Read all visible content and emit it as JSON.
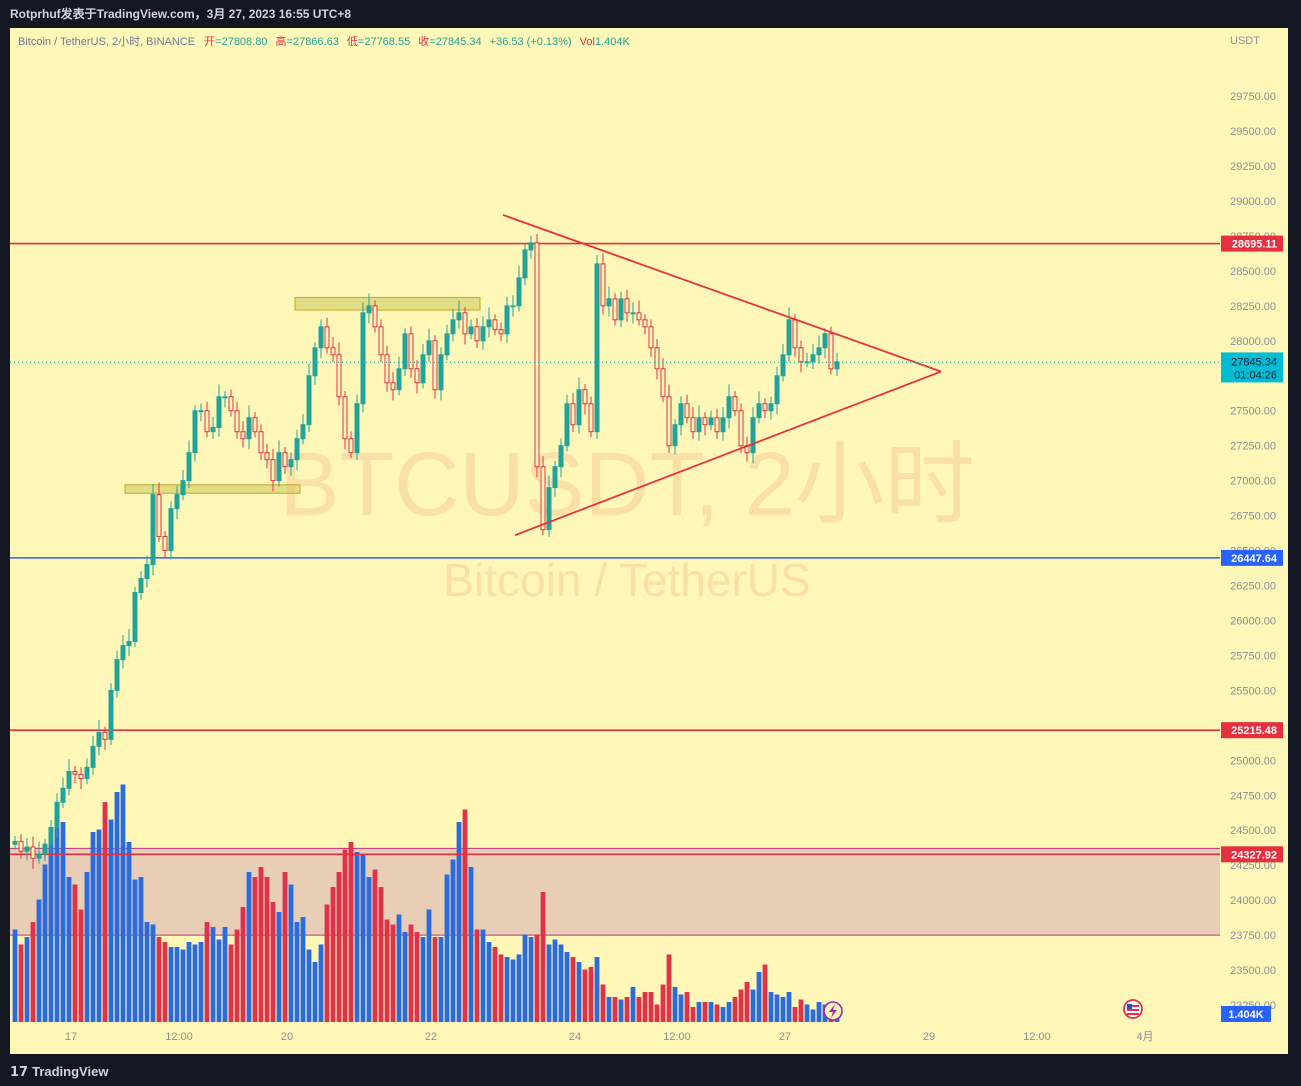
{
  "header": {
    "publisher_line": "Rotprhuf发表于TradingView.com，3月 27, 2023 16:55 UTC+8"
  },
  "legend": {
    "symbol": "Bitcoin / TetherUS, 2小时, BINANCE",
    "open_label": "开",
    "open": "=27808.80",
    "high_label": "高",
    "high": "=27866.63",
    "low_label": "低",
    "low": "=27768.55",
    "close_label": "收",
    "close": "=27845.34",
    "change": "+36.53 (+0.13%)",
    "vol_label": "Vol",
    "vol": "1.404K"
  },
  "watermark": {
    "ticker": "BTCUSDT, 2小时",
    "name": "Bitcoin / TetherUS"
  },
  "footer": {
    "logo_text": "TradingView"
  },
  "colors": {
    "background": "#fff7b8",
    "up": "#2a6ce0",
    "down": "#e0334a",
    "up_candle": "#22a39a",
    "line_red": "#e7303f",
    "line_blue": "#2962ff",
    "zone": "#e8cdb7",
    "box": "#c8c85a",
    "price_badge": "#00bcd4"
  },
  "chart_data": {
    "type": "candlestick",
    "quote_currency": "USDT",
    "ylim": [
      23000,
      30000
    ],
    "y_ticks": [
      "29750.00",
      "29500.00",
      "29250.00",
      "29000.00",
      "28750.00",
      "28500.00",
      "28250.00",
      "28000.00",
      "27500.00",
      "27250.00",
      "27000.00",
      "26750.00",
      "26500.00",
      "26250.00",
      "26000.00",
      "25750.00",
      "25500.00",
      "25250.00",
      "25000.00",
      "24750.00",
      "24500.00",
      "24250.00",
      "24000.00",
      "23750.00",
      "23500.00",
      "23250.00"
    ],
    "x_ticks": [
      "17",
      "12:00",
      "20",
      "22",
      "24",
      "12:00",
      "27",
      "29",
      "12:00",
      "4月"
    ],
    "horizontal_levels": [
      {
        "price": 28695.11,
        "label": "28695.11",
        "color": "#e7303f"
      },
      {
        "price": 26447.64,
        "label": "26447.64",
        "color": "#2962ff"
      },
      {
        "price": 25215.48,
        "label": "25215.48",
        "color": "#e7303f"
      },
      {
        "price": 24327.92,
        "label": "24327.92",
        "color": "#e7303f"
      }
    ],
    "support_zone": [
      23750,
      24370
    ],
    "last_price": {
      "value": 27845.34,
      "label": "27845.34",
      "countdown": "01:04:26"
    },
    "volume_label": "1.404K",
    "triangle": {
      "upper": [
        [
          0,
          28900
        ],
        [
          1,
          27780
        ]
      ],
      "lower": [
        [
          0,
          26610
        ],
        [
          1,
          27780
        ]
      ]
    },
    "rectangles": [
      {
        "from": 26970,
        "to": 26910
      },
      {
        "from": 28310,
        "to": 28220
      }
    ],
    "close": [
      24420,
      24350,
      24380,
      24300,
      24330,
      24400,
      24520,
      24700,
      24800,
      24920,
      24900,
      24870,
      24950,
      25100,
      25200,
      25150,
      25500,
      25720,
      25820,
      25850,
      26200,
      26300,
      26400,
      26900,
      26600,
      26500,
      26800,
      26900,
      27000,
      27200,
      27500,
      27500,
      27350,
      27380,
      27600,
      27600,
      27500,
      27350,
      27300,
      27450,
      27350,
      27200,
      27150,
      27000,
      27200,
      27100,
      27150,
      27300,
      27400,
      27750,
      27950,
      28100,
      27950,
      27900,
      27600,
      27300,
      27200,
      27550,
      28200,
      28250,
      28100,
      27900,
      27700,
      27650,
      27800,
      28050,
      27800,
      27700,
      27900,
      28000,
      27650,
      27900,
      28050,
      28150,
      28200,
      28050,
      28100,
      28000,
      28100,
      28150,
      28080,
      28050,
      28250,
      28250,
      28450,
      28650,
      28700,
      27100,
      26650,
      26950,
      27100,
      27250,
      27550,
      27400,
      27650,
      27550,
      27350,
      28550,
      28250,
      28300,
      28150,
      28300,
      28200,
      28200,
      28150,
      28100,
      27950,
      27800,
      27600,
      27250,
      27400,
      27550,
      27450,
      27350,
      27450,
      27400,
      27450,
      27350,
      27450,
      27600,
      27500,
      27250,
      27200,
      27450,
      27550,
      27500,
      27550,
      27750,
      27900,
      28150,
      27950,
      27850,
      27850,
      27900,
      27950,
      28050,
      27800,
      27850
    ],
    "volume": [
      0.37,
      0.31,
      0.34,
      0.4,
      0.49,
      0.63,
      0.78,
      0.83,
      0.8,
      0.58,
      0.55,
      0.45,
      0.6,
      0.76,
      0.77,
      0.88,
      0.81,
      0.92,
      0.95,
      0.72,
      0.57,
      0.58,
      0.4,
      0.39,
      0.34,
      0.32,
      0.3,
      0.3,
      0.29,
      0.32,
      0.31,
      0.32,
      0.4,
      0.38,
      0.33,
      0.38,
      0.31,
      0.37,
      0.46,
      0.6,
      0.58,
      0.62,
      0.58,
      0.48,
      0.44,
      0.6,
      0.55,
      0.4,
      0.42,
      0.29,
      0.24,
      0.31,
      0.47,
      0.54,
      0.6,
      0.69,
      0.72,
      0.68,
      0.67,
      0.58,
      0.61,
      0.54,
      0.41,
      0.39,
      0.43,
      0.36,
      0.39,
      0.36,
      0.34,
      0.45,
      0.34,
      0.34,
      0.59,
      0.65,
      0.8,
      0.85,
      0.62,
      0.37,
      0.37,
      0.32,
      0.3,
      0.27,
      0.26,
      0.25,
      0.27,
      0.35,
      0.34,
      0.35,
      0.52,
      0.31,
      0.33,
      0.31,
      0.28,
      0.26,
      0.24,
      0.21,
      0.22,
      0.26,
      0.15,
      0.1,
      0.1,
      0.09,
      0.1,
      0.14,
      0.1,
      0.12,
      0.12,
      0.07,
      0.15,
      0.27,
      0.14,
      0.11,
      0.12,
      0.06,
      0.08,
      0.08,
      0.08,
      0.07,
      0.06,
      0.08,
      0.1,
      0.13,
      0.16,
      0.13,
      0.2,
      0.23,
      0.12,
      0.11,
      0.1,
      0.12,
      0.06,
      0.09,
      0.07,
      0.05,
      0.08,
      0.07,
      0.06,
      0.05
    ]
  }
}
